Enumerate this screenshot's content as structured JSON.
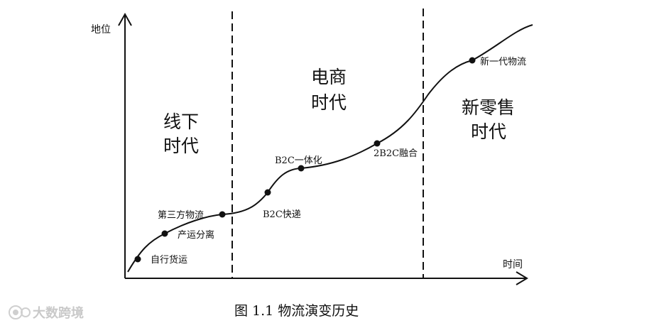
{
  "axes": {
    "y_label": "地位",
    "x_label": "时间"
  },
  "eras": [
    {
      "lines": [
        "线下",
        "时代"
      ]
    },
    {
      "lines": [
        "电商",
        "时代"
      ]
    },
    {
      "lines": [
        "新零售",
        "时代"
      ]
    }
  ],
  "events": [
    {
      "label": "自行货运"
    },
    {
      "label": "产运分离"
    },
    {
      "label": "第三方物流"
    },
    {
      "label": "B2C快递"
    },
    {
      "label": "B2C一体化"
    },
    {
      "label": "2B2C融合"
    },
    {
      "label": "新一代物流"
    }
  ],
  "caption": "图 1.1  物流演变历史",
  "watermark": "大数跨境"
}
